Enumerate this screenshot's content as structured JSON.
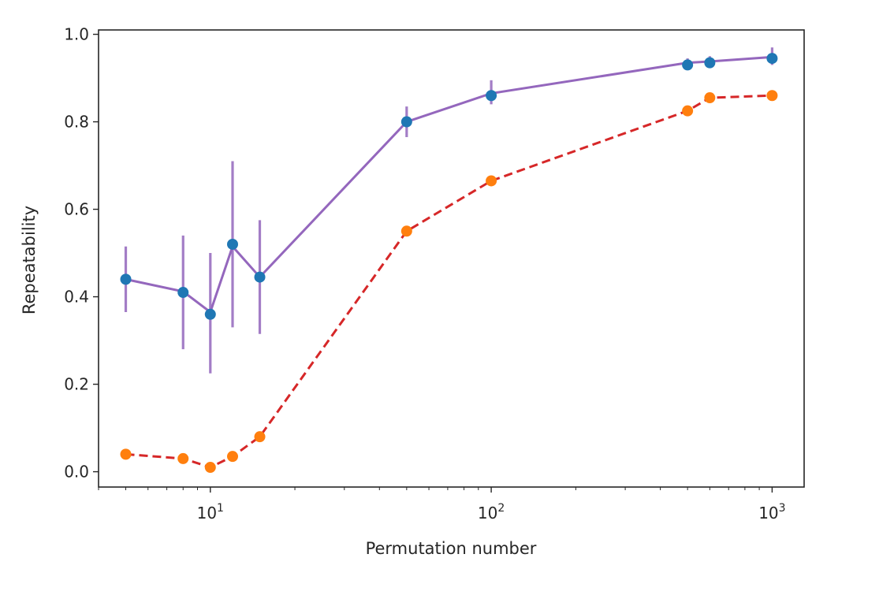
{
  "chart_data": {
    "type": "line",
    "title": "",
    "xlabel": "Permutation number",
    "ylabel": "Repeatability",
    "xscale": "log",
    "xlim": [
      4,
      1300
    ],
    "ylim": [
      -0.035,
      1.01
    ],
    "grid": false,
    "legend": "none",
    "x_ticks": [
      {
        "value": 10,
        "base": "10",
        "exp": "1"
      },
      {
        "value": 100,
        "base": "10",
        "exp": "2"
      },
      {
        "value": 1000,
        "base": "10",
        "exp": "3"
      }
    ],
    "y_ticks": [
      "0.0",
      "0.2",
      "0.4",
      "0.6",
      "0.8",
      "1.0"
    ],
    "x": [
      5,
      8,
      10,
      12,
      15,
      50,
      100,
      500,
      600,
      1000
    ],
    "series": [
      {
        "values": [
          0.44,
          0.41,
          0.36,
          0.52,
          0.445,
          0.8,
          0.86,
          0.93,
          0.935,
          0.945
        ],
        "line_values": [
          0.44,
          0.412,
          0.365,
          0.515,
          0.445,
          0.8,
          0.865,
          0.935,
          0.938,
          0.948
        ],
        "err_low": [
          0.365,
          0.28,
          0.225,
          0.33,
          0.315,
          0.765,
          0.84,
          0.925,
          0.925,
          0.93
        ],
        "err_high": [
          0.515,
          0.54,
          0.5,
          0.71,
          0.575,
          0.835,
          0.895,
          0.945,
          0.95,
          0.97
        ],
        "line_color": "#9467bd",
        "marker_color": "#1f77b4",
        "line_style": "solid"
      },
      {
        "values": [
          0.04,
          0.03,
          0.01,
          0.035,
          0.08,
          0.55,
          0.665,
          0.825,
          0.855,
          0.86
        ],
        "line_color": "#d62728",
        "marker_color": "#ff7f0e",
        "line_style": "dashed"
      }
    ]
  }
}
